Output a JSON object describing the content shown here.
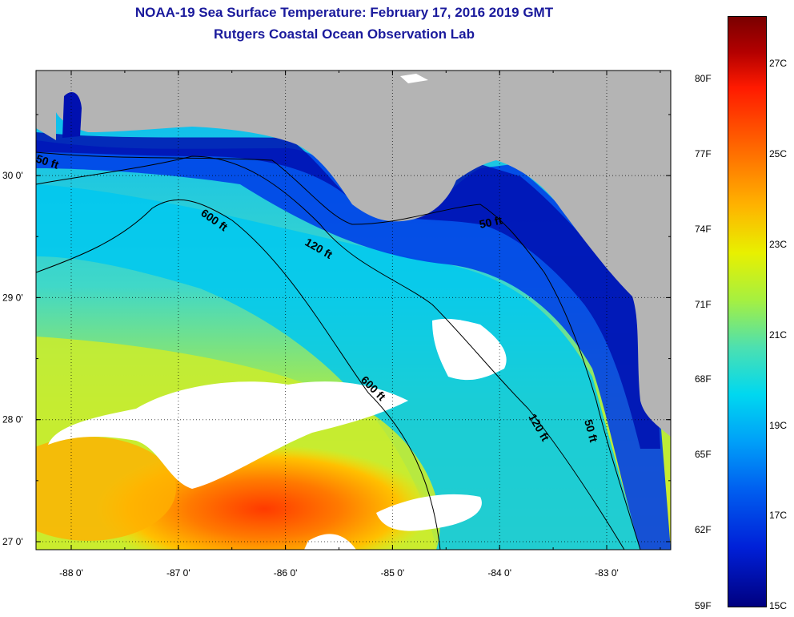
{
  "title": "NOAA-19 Sea Surface Temperature:  February 17, 2016 2019 GMT",
  "subtitle": "Rutgers Coastal Ocean Observation Lab",
  "lon_ticks": [
    {
      "lon": -88,
      "label": "-88 0'"
    },
    {
      "lon": -87,
      "label": "-87 0'"
    },
    {
      "lon": -86,
      "label": "-86 0'"
    },
    {
      "lon": -85,
      "label": "-85 0'"
    },
    {
      "lon": -84,
      "label": "-84 0'"
    },
    {
      "lon": -83,
      "label": "-83 0'"
    }
  ],
  "lat_ticks": [
    {
      "lat": 30,
      "label": "30 0'"
    },
    {
      "lat": 29,
      "label": "29 0'"
    },
    {
      "lat": 28,
      "label": "28 0'"
    },
    {
      "lat": 27,
      "label": "27 0'"
    }
  ],
  "contours": [
    {
      "label": "50 ft",
      "depth_ft": 50
    },
    {
      "label": "120 ft",
      "depth_ft": 120
    },
    {
      "label": "600 ft",
      "depth_ft": 600
    }
  ],
  "colorbar": {
    "fahrenheit_labels": [
      "80F",
      "77F",
      "74F",
      "71F",
      "68F",
      "65F",
      "62F",
      "59F"
    ],
    "celsius_labels": [
      "27C",
      "25C",
      "23C",
      "21C",
      "19C",
      "17C",
      "15C"
    ]
  },
  "colors": {
    "title": "#1a1a9c",
    "land": "#b4b4b4",
    "cloud": "#ffffff"
  }
}
